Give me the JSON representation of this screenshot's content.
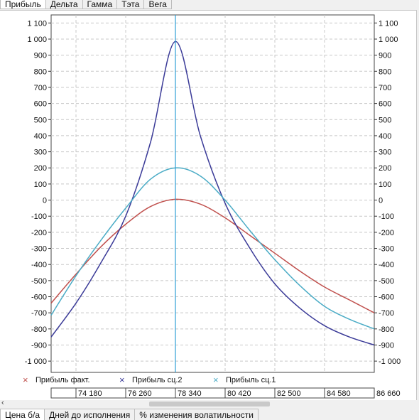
{
  "top_tabs": [
    {
      "label": "Прибыль"
    },
    {
      "label": "Дельта"
    },
    {
      "label": "Гамма"
    },
    {
      "label": "Тэта"
    },
    {
      "label": "Вега"
    }
  ],
  "bottom_tabs": [
    {
      "label": "Цена б/а"
    },
    {
      "label": "Дней до исполнения"
    },
    {
      "label": "% изменения волатильности"
    }
  ],
  "scroll_left_glyph": "‹",
  "colors": {
    "fact": "#c0504d",
    "sc2": "#3b3b98",
    "sc1": "#4bacc6",
    "center_line": "#2e9fd6",
    "grid": "#c8c8c8"
  },
  "chart_data": {
    "type": "line",
    "xlim": [
      73140,
      86660
    ],
    "ylim": [
      -1070,
      1150
    ],
    "yticks": [
      1100,
      1000,
      900,
      800,
      700,
      600,
      500,
      400,
      300,
      200,
      100,
      0,
      -100,
      -200,
      -300,
      -400,
      -500,
      -600,
      -700,
      -800,
      -900,
      -1000
    ],
    "ytick_labels": [
      "1 100",
      "1 000",
      "900",
      "800",
      "700",
      "600",
      "500",
      "400",
      "300",
      "200",
      "100",
      "0",
      "-100",
      "-200",
      "-300",
      "-400",
      "-500",
      "-600",
      "-700",
      "-800",
      "-900",
      "-1 000"
    ],
    "xticks": [
      74180,
      76260,
      78340,
      80420,
      82500,
      84580,
      86660
    ],
    "xtick_labels": [
      "74 180",
      "76 260",
      "78 340",
      "80 420",
      "82 500",
      "84 580",
      "86 660"
    ],
    "center_x": 78340,
    "series": [
      {
        "name": "Прибыль факт.",
        "key": "fact",
        "marker": "×",
        "x": [
          73140,
          74180,
          75220,
          76260,
          77300,
          78340,
          79380,
          80420,
          81460,
          82500,
          83540,
          84580,
          85620,
          86660
        ],
        "y": [
          -640,
          -460,
          -290,
          -150,
          -40,
          5,
          -25,
          -110,
          -220,
          -330,
          -440,
          -540,
          -620,
          -700
        ]
      },
      {
        "name": "Прибыль сц.2",
        "key": "sc2",
        "marker": "×",
        "x": [
          73140,
          74180,
          75220,
          76260,
          77300,
          78340,
          79380,
          80420,
          81460,
          82500,
          83540,
          84580,
          85620,
          86660
        ],
        "y": [
          -850,
          -640,
          -390,
          -100,
          360,
          985,
          400,
          -20,
          -300,
          -520,
          -670,
          -780,
          -850,
          -900
        ]
      },
      {
        "name": "Прибыль сц.1",
        "key": "sc1",
        "marker": "×",
        "x": [
          73140,
          74180,
          75220,
          76260,
          77300,
          78340,
          79380,
          80420,
          81460,
          82500,
          83540,
          84580,
          85620,
          86660
        ],
        "y": [
          -715,
          -470,
          -250,
          -50,
          130,
          200,
          150,
          0,
          -190,
          -370,
          -530,
          -660,
          -740,
          -800
        ]
      }
    ]
  }
}
